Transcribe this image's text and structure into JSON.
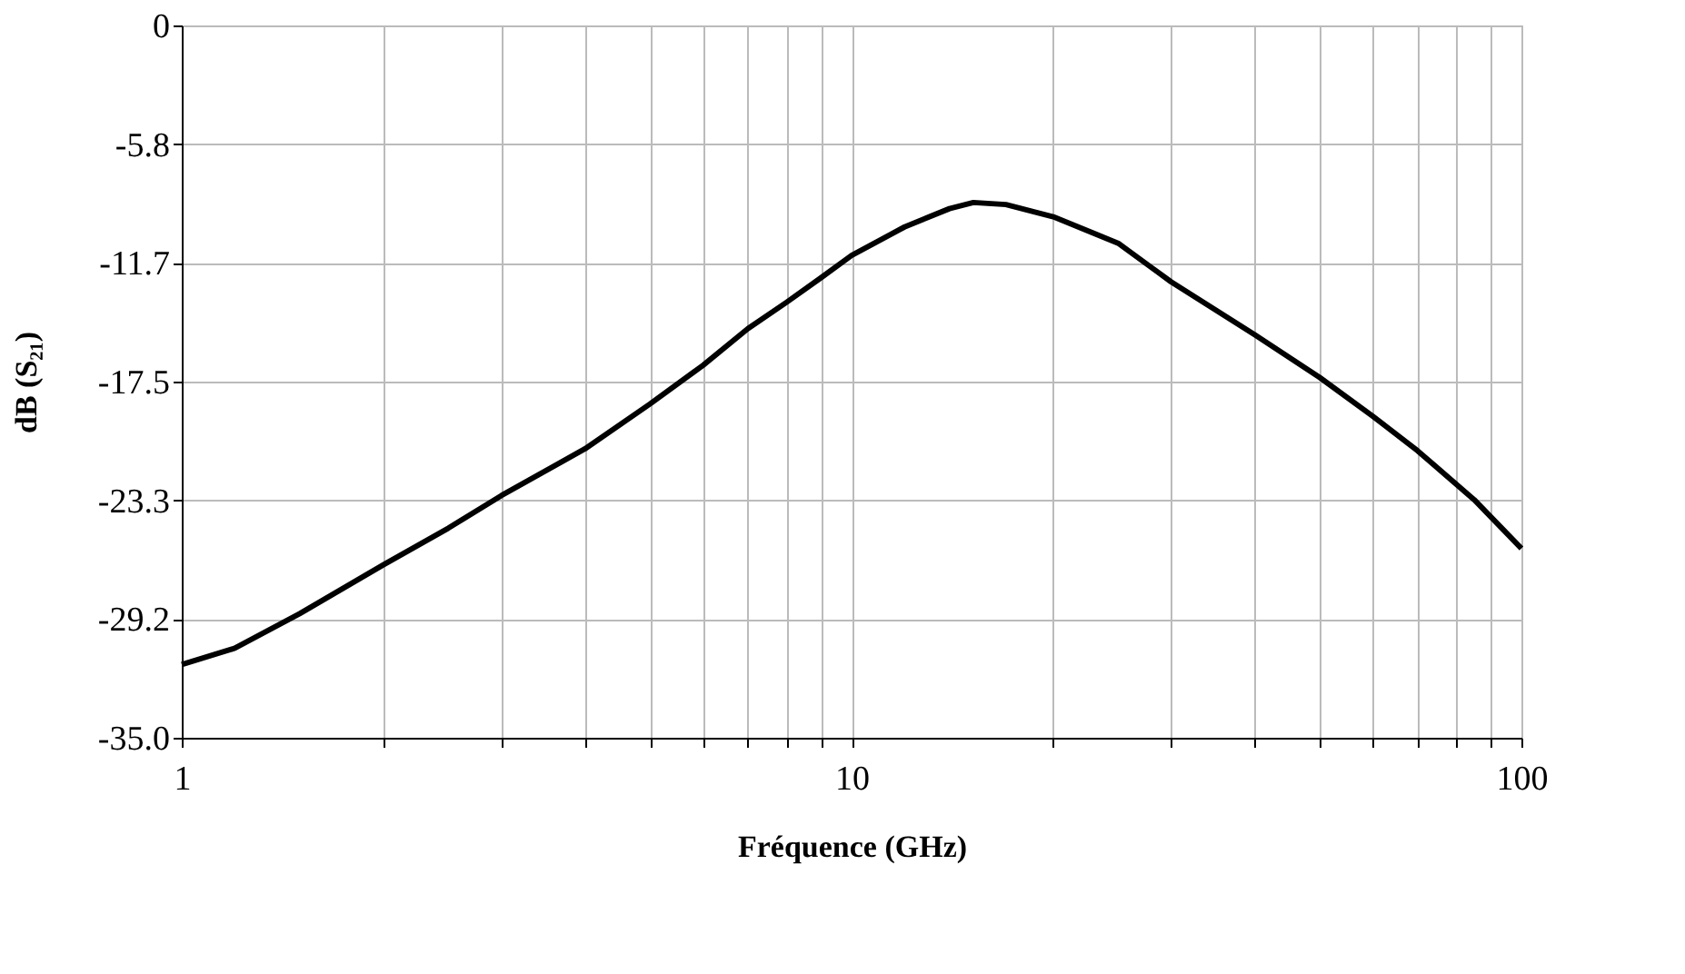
{
  "chart_data": {
    "type": "line",
    "xlabel": "Fréquence (GHz)",
    "ylabel": "dB (S₂₁)",
    "x": [
      1,
      1.2,
      1.5,
      2,
      2.5,
      3,
      4,
      5,
      6,
      7,
      8,
      9,
      10,
      12,
      14,
      15.2,
      17,
      20,
      25,
      30,
      40,
      50,
      60,
      70,
      85,
      100
    ],
    "series": [
      {
        "color": "#000000",
        "values": [
          -31.4,
          -30.6,
          -28.9,
          -26.5,
          -24.7,
          -23.1,
          -20.8,
          -18.6,
          -16.7,
          -14.9,
          -13.6,
          -12.4,
          -11.3,
          -9.9,
          -9.0,
          -8.7,
          -8.8,
          -9.4,
          -10.7,
          -12.6,
          -15.2,
          -17.3,
          -19.2,
          -20.9,
          -23.3,
          -25.7
        ]
      }
    ],
    "log": "x",
    "xlim": [
      1,
      100
    ],
    "ylim": [
      -35,
      0
    ],
    "xticks": [
      1,
      {
        "value": 2,
        "label": null
      },
      {
        "value": 3,
        "label": null
      },
      {
        "value": 4,
        "label": null
      },
      {
        "value": 5,
        "label": null
      },
      {
        "value": 6,
        "label": null
      },
      {
        "value": 7,
        "label": null
      },
      {
        "value": 8,
        "label": null
      },
      {
        "value": 9,
        "label": null
      },
      10,
      {
        "value": 20,
        "label": null
      },
      {
        "value": 30,
        "label": null
      },
      {
        "value": 40,
        "label": null
      },
      {
        "value": 50,
        "label": null
      },
      {
        "value": 60,
        "label": null
      },
      {
        "value": 70,
        "label": null
      },
      {
        "value": 80,
        "label": null
      },
      {
        "value": 90,
        "label": null
      },
      100
    ],
    "yticks": [
      {
        "value": -35,
        "label": "-35.0"
      },
      {
        "value": -29.167,
        "label": "-29.2"
      },
      {
        "value": -23.333,
        "label": "-23.3"
      },
      {
        "value": -17.5,
        "label": "-17.5"
      },
      {
        "value": -11.667,
        "label": "-11.7"
      },
      {
        "value": -5.833,
        "label": "-5.8"
      },
      0
    ],
    "grid": true,
    "marker": "none",
    "line_style": "solid"
  }
}
